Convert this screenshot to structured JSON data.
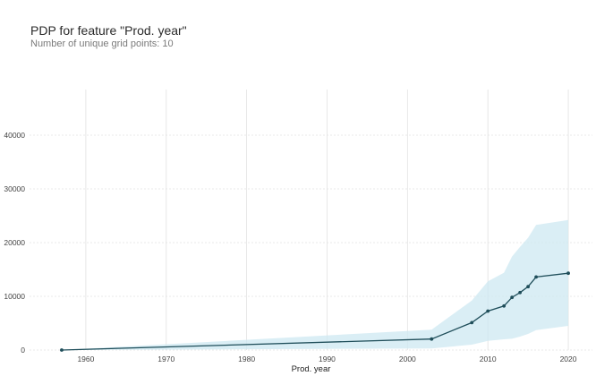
{
  "chart_data": {
    "type": "line",
    "title": "PDP for feature \"Prod. year\"",
    "subtitle": "Number of unique grid points: 10",
    "xlabel": "Prod. year",
    "ylabel": "",
    "xlim": [
      1953,
      2023
    ],
    "ylim": [
      0,
      48500
    ],
    "x_ticks": [
      1960,
      1970,
      1980,
      1990,
      2000,
      2010,
      2020
    ],
    "y_ticks": [
      0,
      10000,
      20000,
      30000,
      40000
    ],
    "grid": true,
    "line_color": "#1f4e5a",
    "band_color": "#cde8f2",
    "series": [
      {
        "x": [
          1957,
          2003,
          2008,
          2010,
          2012,
          2013,
          2014,
          2015,
          2016,
          2020
        ],
        "y": [
          0,
          2050,
          5100,
          7250,
          8200,
          9800,
          10700,
          11800,
          13600,
          14300
        ],
        "lower": [
          0,
          300,
          1000,
          1700,
          2000,
          2100,
          2500,
          3000,
          3700,
          4500
        ],
        "upper": [
          0,
          3800,
          9200,
          12800,
          14400,
          17400,
          19200,
          20900,
          23300,
          24200
        ]
      }
    ]
  }
}
